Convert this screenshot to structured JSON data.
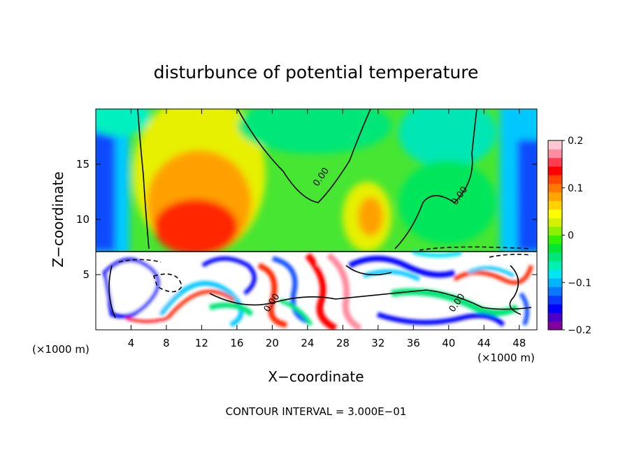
{
  "chart_data": {
    "type": "heatmap",
    "title": "disturbunce of potential temperature",
    "xlabel": "X−coordinate",
    "ylabel": "Z−coordinate",
    "x_unit": "(×1000 m)",
    "x_unit_right": "(×1000 m)",
    "xlim": [
      0,
      50
    ],
    "ylim": [
      0,
      20
    ],
    "x_ticks": [
      4,
      8,
      12,
      16,
      20,
      24,
      28,
      32,
      36,
      40,
      44,
      48
    ],
    "y_ticks": [
      5,
      10,
      15
    ],
    "colorbar": {
      "range": [
        -0.2,
        0.2
      ],
      "ticks": [
        0.2,
        0.1,
        0,
        -0.1,
        -0.2
      ],
      "tick_labels": [
        "0.2",
        "0.1",
        "0",
        "−0.1",
        "−0.2"
      ],
      "colors": [
        "#8000a0",
        "#4a00c8",
        "#0000ff",
        "#0a3cff",
        "#0a78ff",
        "#00b4ff",
        "#00e6f0",
        "#00f0b4",
        "#00e678",
        "#00e632",
        "#32f000",
        "#8cf000",
        "#d2f000",
        "#ffff00",
        "#ffd200",
        "#ffa500",
        "#ff7800",
        "#ff4600",
        "#ff0000",
        "#ff3c50",
        "#ff8ca0",
        "#ffc8d2"
      ]
    },
    "contour_labels": [
      {
        "text": "0.00",
        "x": 25.8,
        "z": 13.7
      },
      {
        "text": "0.00",
        "x": 41.5,
        "z": 12.0
      },
      {
        "text": "0.00",
        "x": 20.2,
        "z": 2.3
      },
      {
        "text": "0.00",
        "x": 41.2,
        "z": 2.3
      }
    ],
    "footer": "CONTOUR INTERVAL = 3.000E−01"
  }
}
